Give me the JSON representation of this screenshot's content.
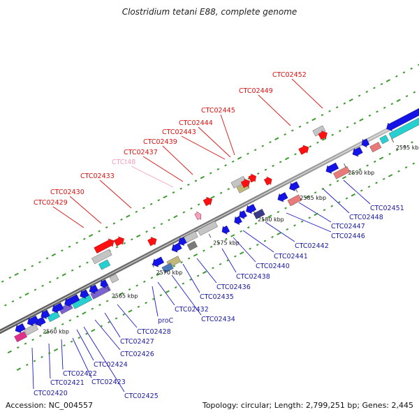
{
  "title": "Clostridium tetani E88, complete genome",
  "footer": {
    "accession": "Accession: NC_004557",
    "topology": "Topology: circular; Length: 2,799,251 bp; Genes: 2,445"
  },
  "colors": {
    "backbone": "#8a8a8a",
    "tick_dots": "#3c9a2e",
    "forward_label": "#dd1111",
    "forward_rna_label": "#f4a0bf",
    "reverse_label": "#1a1aa0",
    "cds_forward": "#ff1010",
    "cds_reverse": "#1414e6",
    "pseudo": "#c4c4c4",
    "other_feature": "#e87a7a",
    "rna": "#26d0d0",
    "operon": "#7a63cf",
    "regulatory": "#c0b87a",
    "repeat": "#e0308a"
  },
  "scale": {
    "unit": "kbp",
    "ticks": [
      {
        "label": "2560 kbp"
      },
      {
        "label": "2565 kbp"
      },
      {
        "label": "2570 kbp"
      },
      {
        "label": "2575 kbp"
      },
      {
        "label": "2580 kbp"
      },
      {
        "label": "2585 kbp"
      },
      {
        "label": "2590 kbp"
      },
      {
        "label": "2595 kbp"
      }
    ]
  },
  "forward_labels": [
    {
      "id": "CTC02429"
    },
    {
      "id": "CTC02430"
    },
    {
      "id": "CTC02433"
    },
    {
      "id": "CTCt48"
    },
    {
      "id": "CTC02437"
    },
    {
      "id": "CTC02439"
    },
    {
      "id": "CTC02443"
    },
    {
      "id": "CTC02444"
    },
    {
      "id": "CTC02445"
    },
    {
      "id": "CTC02449"
    },
    {
      "id": "CTC02452"
    }
  ],
  "reverse_labels": [
    {
      "id": "CTC02420"
    },
    {
      "id": "CTC02421"
    },
    {
      "id": "CTC02422"
    },
    {
      "id": "CTC02423"
    },
    {
      "id": "CTC02424"
    },
    {
      "id": "CTC02425"
    },
    {
      "id": "CTC02426"
    },
    {
      "id": "CTC02427"
    },
    {
      "id": "CTC02428"
    },
    {
      "id": "proC"
    },
    {
      "id": "CTC02432"
    },
    {
      "id": "CTC02434"
    },
    {
      "id": "CTC02435"
    },
    {
      "id": "CTC02436"
    },
    {
      "id": "CTC02438"
    },
    {
      "id": "CTC02440"
    },
    {
      "id": "CTC02441"
    },
    {
      "id": "CTC02442"
    },
    {
      "id": "CTC02446"
    },
    {
      "id": "CTC02447"
    },
    {
      "id": "CTC02448"
    },
    {
      "id": "CTC02451"
    }
  ]
}
